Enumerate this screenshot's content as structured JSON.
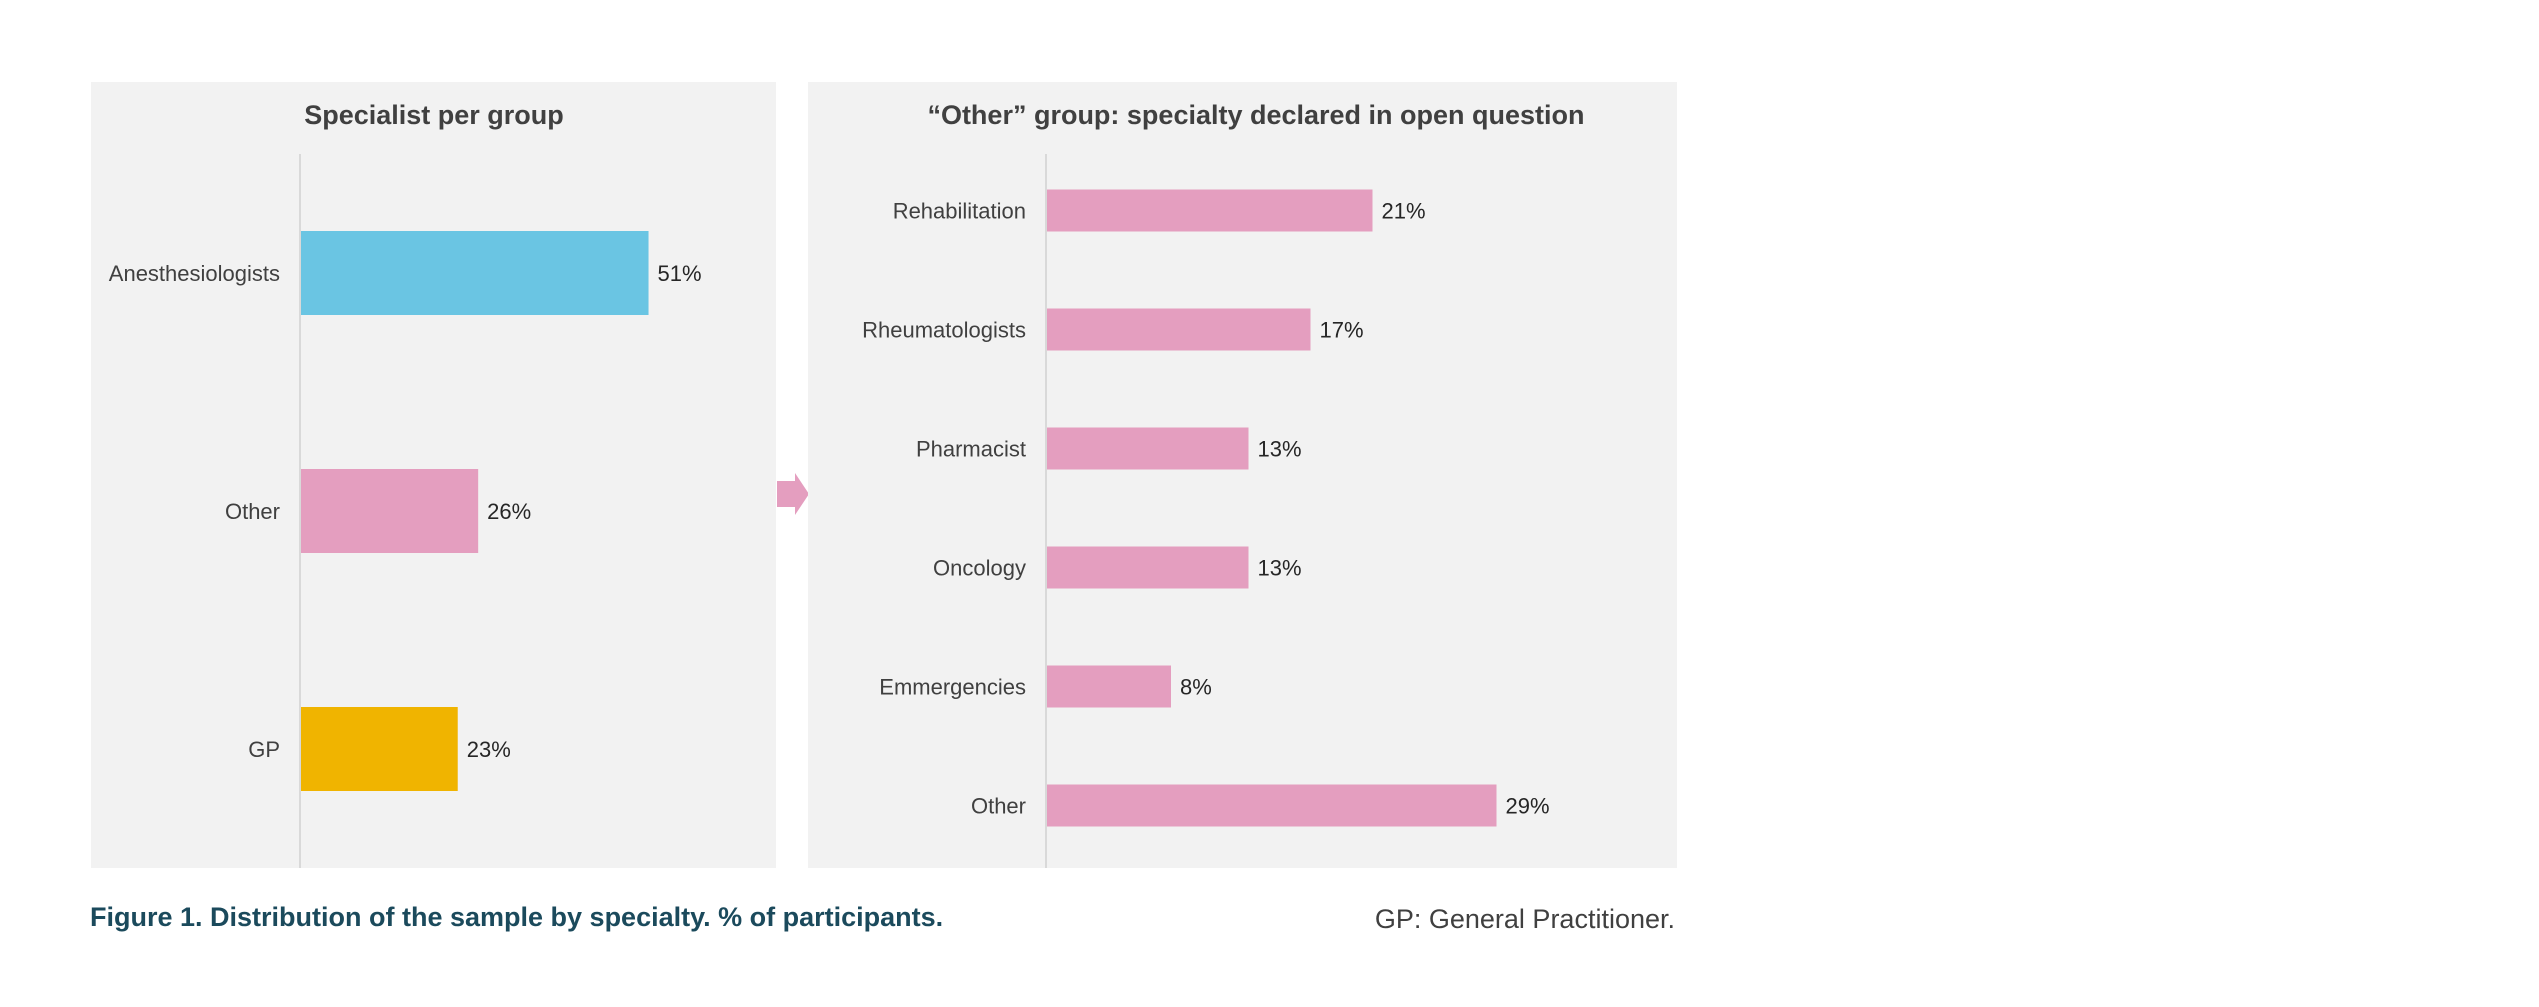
{
  "colors": {
    "panel_background": "#f2f2f2",
    "anesthesiologists": "#6ac5e3",
    "other": "#e49ebf",
    "gp": "#f0b400",
    "caption": "#1b4a5c",
    "connector_arrow": "#e49ebf"
  },
  "caption": "Figure 1. Distribution of the sample by specialty. % of participants.",
  "note": "GP: General Practitioner.",
  "connector_icon": "arrow-right-icon",
  "chart_data": [
    {
      "type": "bar",
      "orientation": "horizontal",
      "title": "Specialist per group",
      "categories": [
        "Anesthesiologists",
        "Other",
        "GP"
      ],
      "values": [
        51,
        26,
        23
      ],
      "data_labels": [
        "51%",
        "26%",
        "23%"
      ],
      "bar_colors": [
        "#6ac5e3",
        "#e49ebf",
        "#f0b400"
      ],
      "xlim": [
        0,
        70
      ],
      "grid": false
    },
    {
      "type": "bar",
      "orientation": "horizontal",
      "title": "“Other” group: specialty declared in open question",
      "categories": [
        "Rehabilitation",
        "Rheumatologists",
        "Pharmacist",
        "Oncology",
        "Emmergencies",
        "Other"
      ],
      "values": [
        21,
        17,
        13,
        13,
        8,
        29
      ],
      "data_labels": [
        "21%",
        "17%",
        "13%",
        "13%",
        "8%",
        "29%"
      ],
      "bar_colors": [
        "#e49ebf",
        "#e49ebf",
        "#e49ebf",
        "#e49ebf",
        "#e49ebf",
        "#e49ebf"
      ],
      "xlim": [
        0,
        40
      ],
      "grid": false
    }
  ]
}
